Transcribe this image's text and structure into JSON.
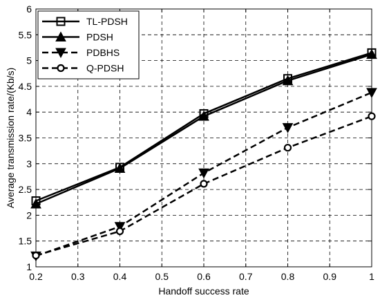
{
  "chart_data": {
    "type": "line",
    "xlabel": "Handoff success rate",
    "ylabel": "Average transmission rate/(Kb/s)",
    "xlim": [
      0.2,
      1.0
    ],
    "ylim": [
      1,
      6
    ],
    "xticks": [
      "0.2",
      "0.3",
      "0.4",
      "0.5",
      "0.6",
      "0.7",
      "0.8",
      "0.9",
      "1"
    ],
    "yticks": [
      "1",
      "1.5",
      "2",
      "2.5",
      "3",
      "3.5",
      "4",
      "4.5",
      "5",
      "5.5",
      "6"
    ],
    "grid": true,
    "legend_position": "top-left",
    "x": [
      0.2,
      0.4,
      0.6,
      0.8,
      1.0
    ],
    "series": [
      {
        "name": "TL-PDSH",
        "values": [
          2.28,
          2.93,
          3.97,
          4.65,
          5.15
        ],
        "marker": "square",
        "line": "solid"
      },
      {
        "name": "PDSH",
        "values": [
          2.22,
          2.91,
          3.92,
          4.61,
          5.12
        ],
        "marker": "triangle-up",
        "line": "solid"
      },
      {
        "name": "PDBHS",
        "values": [
          1.21,
          1.78,
          2.82,
          3.7,
          4.38
        ],
        "marker": "triangle-down",
        "line": "dashed"
      },
      {
        "name": "Q-PDSH",
        "values": [
          1.22,
          1.69,
          2.61,
          3.31,
          3.92
        ],
        "marker": "circle",
        "line": "dashed"
      }
    ]
  }
}
